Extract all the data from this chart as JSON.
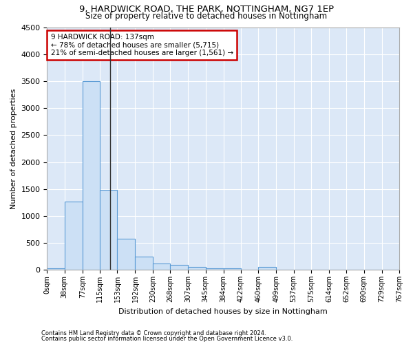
{
  "title1": "9, HARDWICK ROAD, THE PARK, NOTTINGHAM, NG7 1EP",
  "title2": "Size of property relative to detached houses in Nottingham",
  "xlabel": "Distribution of detached houses by size in Nottingham",
  "ylabel": "Number of detached properties",
  "annotation_title": "9 HARDWICK ROAD: 137sqm",
  "annotation_line1": "← 78% of detached houses are smaller (5,715)",
  "annotation_line2": "21% of semi-detached houses are larger (1,561) →",
  "property_size": 137,
  "footer1": "Contains HM Land Registry data © Crown copyright and database right 2024.",
  "footer2": "Contains public sector information licensed under the Open Government Licence v3.0.",
  "bin_edges": [
    0,
    38,
    77,
    115,
    153,
    192,
    230,
    268,
    307,
    345,
    384,
    422,
    460,
    499,
    537,
    575,
    614,
    652,
    690,
    729,
    767
  ],
  "bar_heights": [
    30,
    1270,
    3500,
    1480,
    575,
    240,
    115,
    85,
    55,
    30,
    30,
    0,
    55,
    0,
    0,
    0,
    0,
    0,
    0,
    0
  ],
  "bar_color": "#cce0f5",
  "bar_edge_color": "#5b9bd5",
  "vline_color": "#333333",
  "annotation_box_color": "#cc0000",
  "background_color": "#dce8f7",
  "ylim": [
    0,
    4500
  ],
  "yticks": [
    0,
    500,
    1000,
    1500,
    2000,
    2500,
    3000,
    3500,
    4000,
    4500
  ]
}
